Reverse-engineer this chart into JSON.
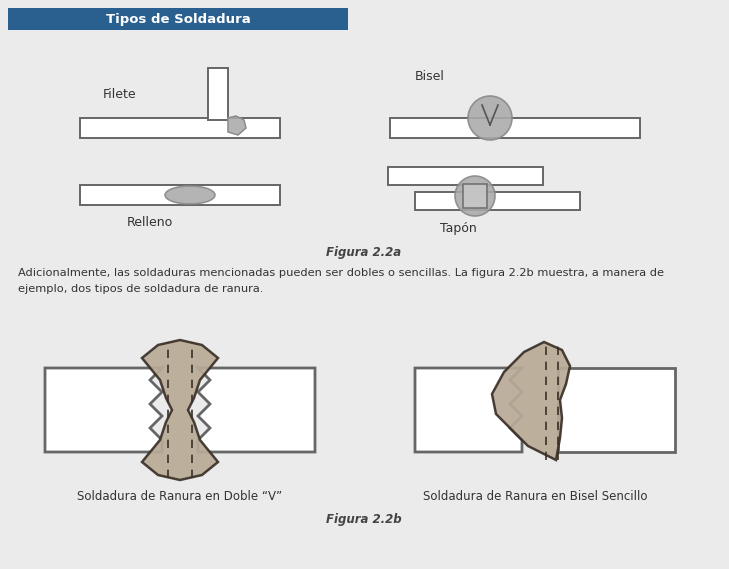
{
  "bg_color": "#ebebeb",
  "header_bg": "#2a6090",
  "header_text": "Tipos de Soldadura",
  "header_text_color": "#ffffff",
  "weld_fill": "#b8aa96",
  "weld_edge": "#3a3028",
  "rect_edge": "#666666",
  "rect_fill": "#ffffff",
  "gray_fill": "#aaaaaa",
  "gray_dark": "#888888",
  "text_color": "#333333",
  "fig_label_color": "#444444",
  "body_line1": "Adicionalmente, las soldaduras mencionadas pueden ser dobles o sencillas. La figura 2.2b muestra, a manera de",
  "body_line2": "ejemplo, dos tipos de soldadura de ranura.",
  "fig2a_label": "Figura 2.2a",
  "fig2b_label": "Figura 2.2b",
  "label_filete": "Filete",
  "label_bisel": "Bisel",
  "label_relleno": "Relleno",
  "label_tapon": "Tapón",
  "label_doble_v": "Soldadura de Ranura en Doble “V”",
  "label_bisel_sencillo": "Soldadura de Ranura en Bisel Sencillo"
}
